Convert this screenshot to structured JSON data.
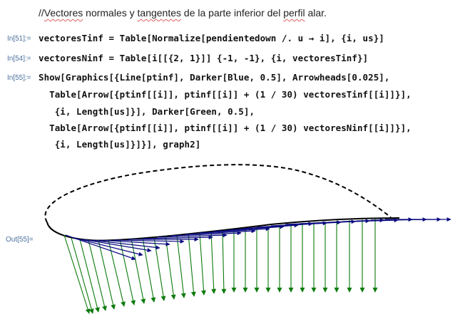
{
  "comment": {
    "prefix": "//",
    "word1": "Vectores",
    "mid1": " normales y ",
    "word2": "tangentes",
    "mid2": " de la parte inferior del ",
    "word3": "perfil",
    "suffix": " alar."
  },
  "cells": [
    {
      "label": "In[51]:=",
      "line": "vectoresTinf = Table[Normalize[pendientedown /. u → i], {i, us}]"
    },
    {
      "label": "In[54]:=",
      "line": "vectoresNinf = Table[i[[{2, 1}]] {-1, -1}, {i, vectoresTinf}]"
    },
    {
      "label": "In[55]:=",
      "lines": [
        "Show[Graphics[{Line[ptinf], Darker[Blue, 0.5], Arrowheads[0.025],",
        "  Table[Arrow[{ptinf[[i]], ptinf[[i]] + (1 / 30) vectoresTinf[[i]]}],",
        "   {i, Length[us]}], Darker[Green, 0.5],",
        "  Table[Arrow[{ptinf[[i]], ptinf[[i]] + (1 / 30) vectoresNinf[[i]]}],",
        "   {i, Length[us]}]}], graph2]"
      ]
    }
  ],
  "output_label": "Out[55]=",
  "colors": {
    "tangent_arrows": "#0b0b80",
    "normal_arrows": "#0b7a0b",
    "lower_curve": "#000000",
    "upper_dashed": "#000000",
    "label_blue": "#4a6f9c"
  }
}
